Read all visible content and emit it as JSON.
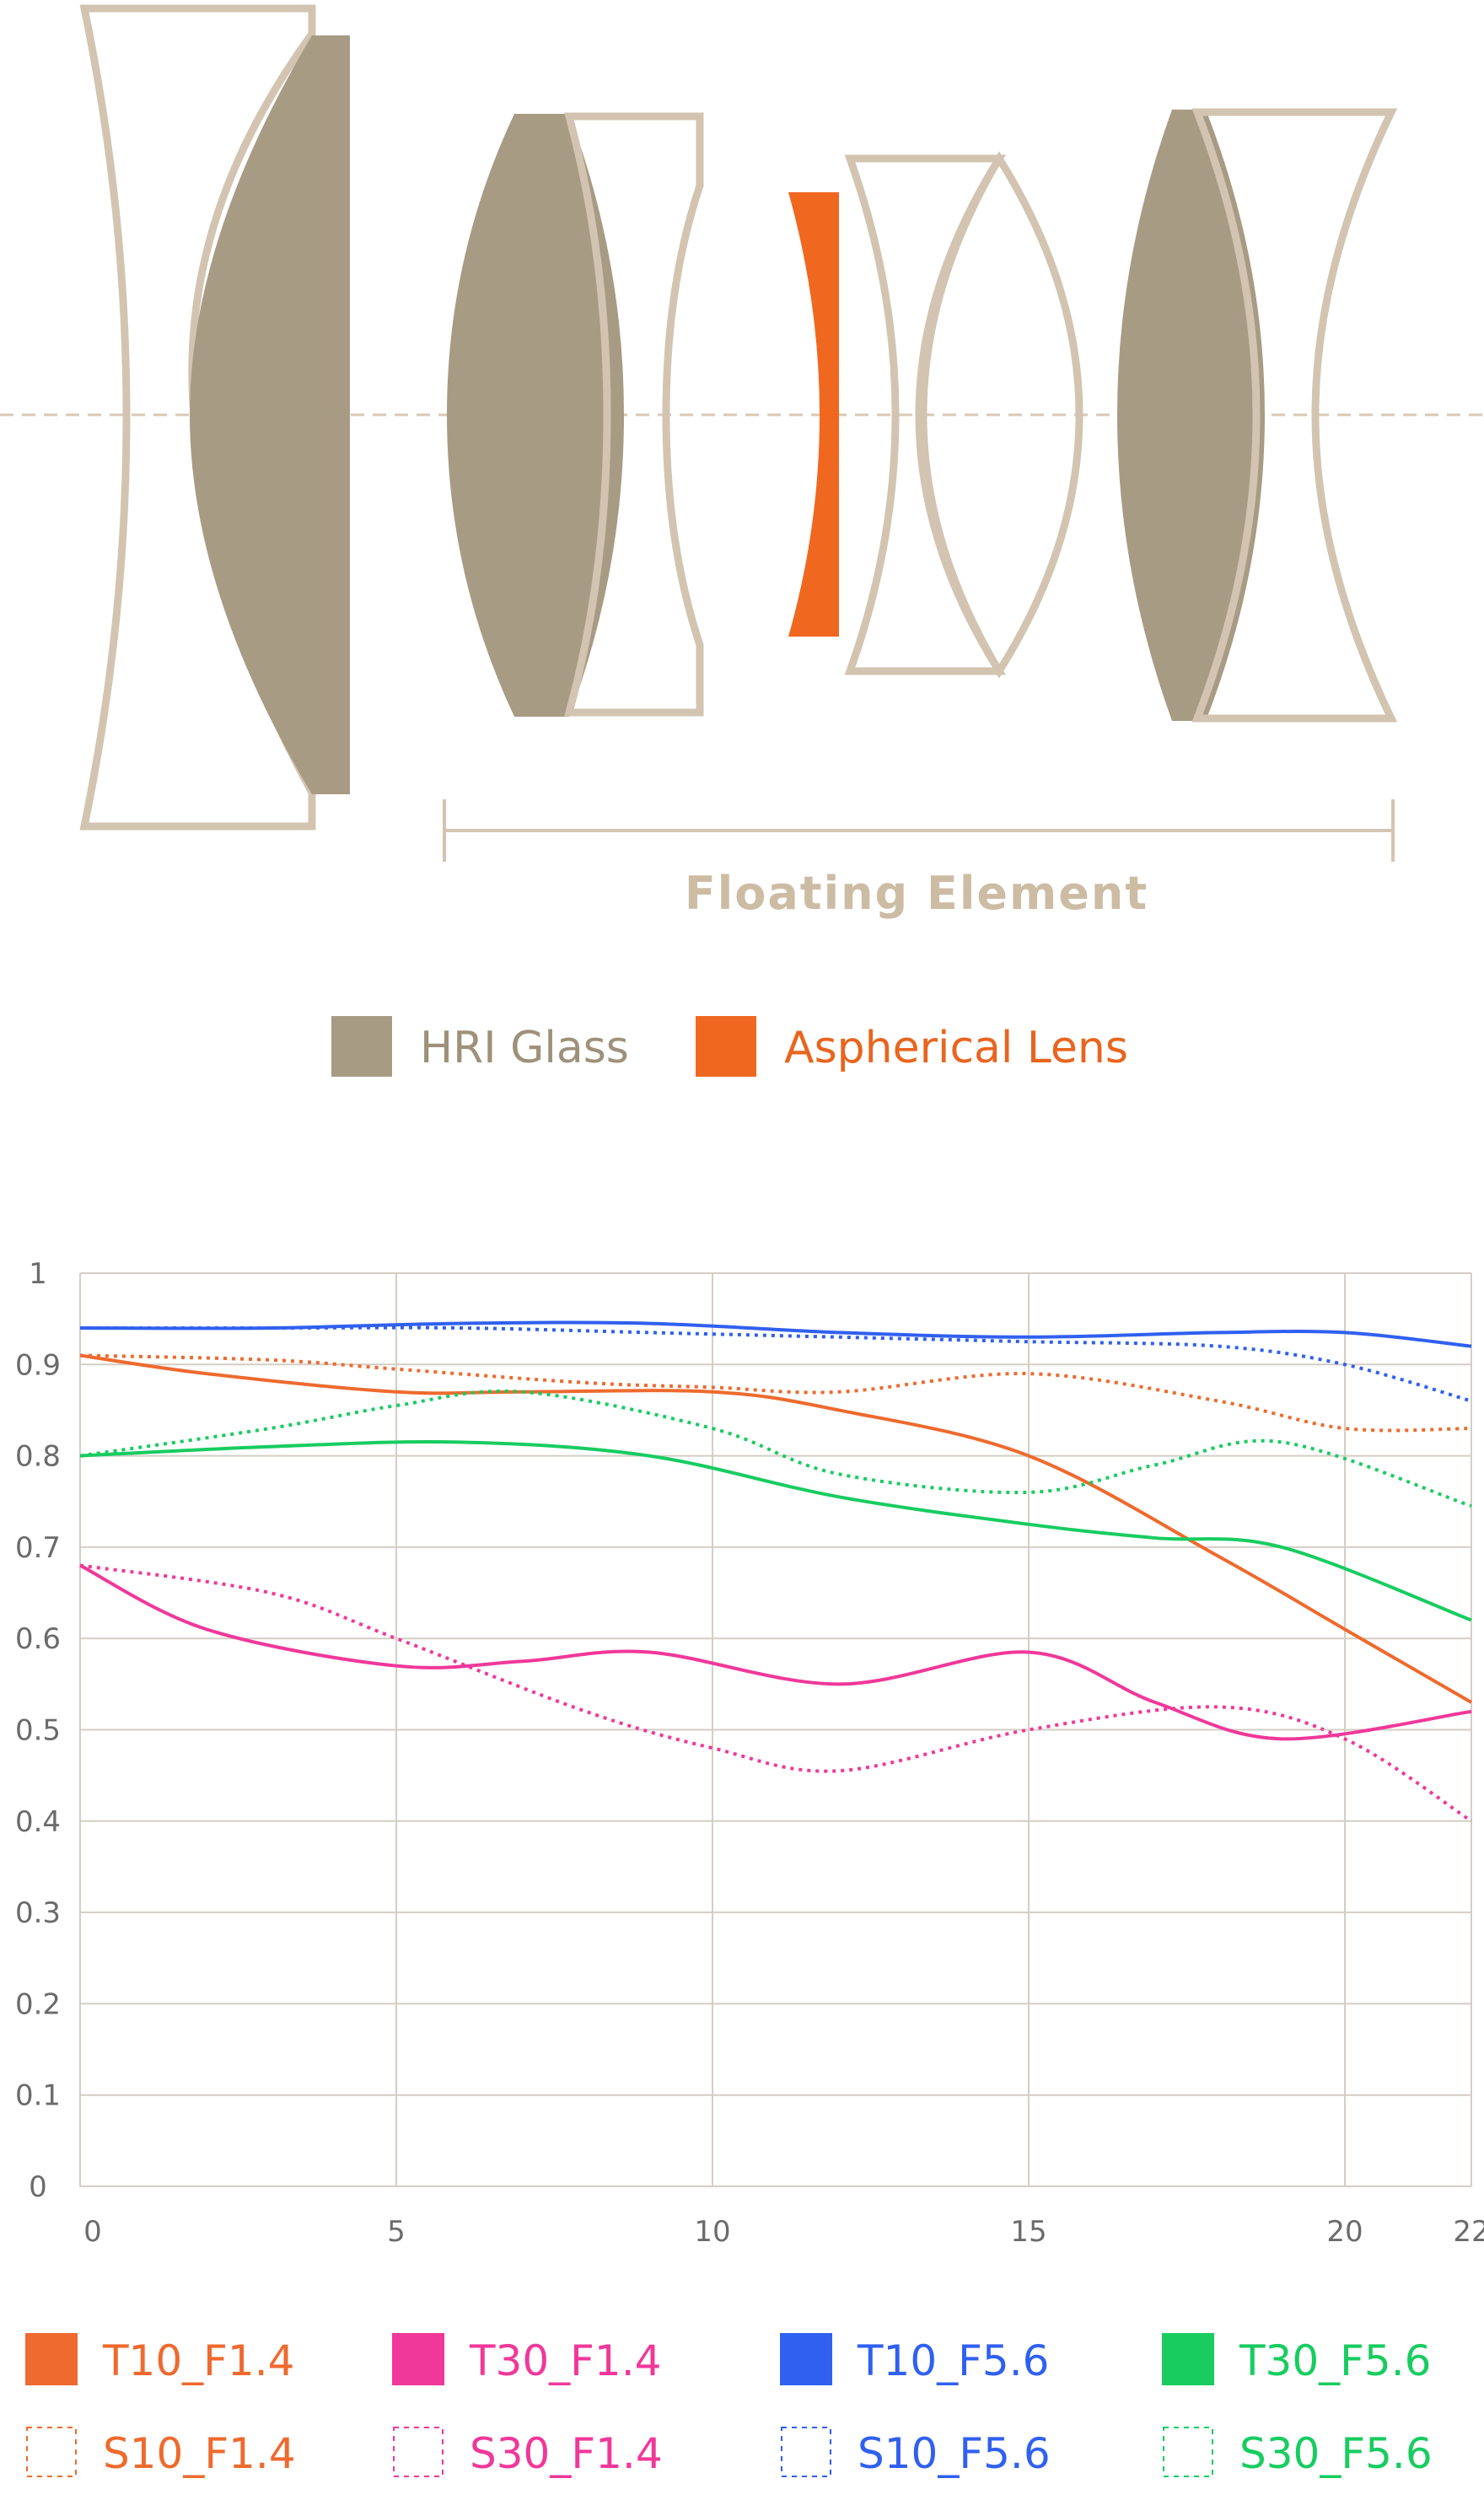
{
  "diagram": {
    "floating_label": "Floating Element",
    "legend": [
      {
        "label": "HRI Glass",
        "color": "#a89b84",
        "text_color": "#9e917a"
      },
      {
        "label": "Aspherical Lens",
        "color": "#f06820",
        "text_color": "#e8651f"
      }
    ],
    "colors": {
      "outline": "#d3c4b1",
      "hri": "#a89b84",
      "asph": "#f06820",
      "axis": "#d8c8b4",
      "label": "#cdbca4"
    }
  },
  "chart_data": {
    "type": "line",
    "title": "",
    "xlabel": "",
    "ylabel": "",
    "xlim": [
      0,
      22
    ],
    "ylim": [
      0,
      1
    ],
    "x_ticks": [
      "0",
      "5",
      "10",
      "15",
      "20",
      "22"
    ],
    "x_tick_values": [
      0,
      5,
      10,
      15,
      20,
      22
    ],
    "y_ticks": [
      "0",
      "0.1",
      "0.2",
      "0.3",
      "0.4",
      "0.5",
      "0.6",
      "0.7",
      "0.8",
      "0.9",
      "1"
    ],
    "y_tick_values": [
      0,
      0.1,
      0.2,
      0.3,
      0.4,
      0.5,
      0.6,
      0.7,
      0.8,
      0.9,
      1
    ],
    "grid": true,
    "series": [
      {
        "name": "T10_F1.4",
        "color": "#ee6a2e",
        "dashed": false,
        "x": [
          0,
          2,
          5,
          7,
          10,
          12,
          15,
          18,
          20,
          22
        ],
        "y": [
          0.91,
          0.89,
          0.87,
          0.87,
          0.87,
          0.85,
          0.8,
          0.69,
          0.61,
          0.53
        ]
      },
      {
        "name": "S10_F1.4",
        "color": "#ee6a2e",
        "dashed": true,
        "x": [
          0,
          3,
          5,
          8,
          10,
          12,
          15,
          18,
          20,
          22
        ],
        "y": [
          0.91,
          0.905,
          0.895,
          0.88,
          0.875,
          0.87,
          0.89,
          0.86,
          0.83,
          0.83
        ]
      },
      {
        "name": "T30_F1.4",
        "color": "#f0389a",
        "dashed": false,
        "x": [
          0,
          2,
          5,
          7,
          9,
          12,
          15,
          17,
          19,
          22
        ],
        "y": [
          0.68,
          0.61,
          0.57,
          0.575,
          0.585,
          0.55,
          0.585,
          0.53,
          0.49,
          0.52
        ]
      },
      {
        "name": "S30_F1.4",
        "color": "#f0389a",
        "dashed": true,
        "x": [
          0,
          3,
          5,
          8,
          10,
          12,
          15,
          18,
          20,
          22
        ],
        "y": [
          0.68,
          0.65,
          0.6,
          0.52,
          0.48,
          0.455,
          0.5,
          0.525,
          0.49,
          0.4
        ]
      },
      {
        "name": "T10_F5.6",
        "color": "#3060f0",
        "dashed": false,
        "x": [
          0,
          3,
          6,
          9,
          12,
          15,
          18,
          20,
          22
        ],
        "y": [
          0.94,
          0.94,
          0.945,
          0.945,
          0.935,
          0.93,
          0.935,
          0.935,
          0.92
        ]
      },
      {
        "name": "S10_F5.6",
        "color": "#3060f0",
        "dashed": true,
        "x": [
          0,
          3,
          6,
          9,
          12,
          15,
          18,
          20,
          22
        ],
        "y": [
          0.94,
          0.94,
          0.94,
          0.935,
          0.93,
          0.925,
          0.92,
          0.9,
          0.86
        ]
      },
      {
        "name": "T30_F5.6",
        "color": "#18cc60",
        "dashed": false,
        "x": [
          0,
          3,
          6,
          9,
          12,
          15,
          17,
          19,
          22
        ],
        "y": [
          0.8,
          0.81,
          0.815,
          0.8,
          0.755,
          0.725,
          0.71,
          0.7,
          0.62
        ]
      },
      {
        "name": "S30_F5.6",
        "color": "#18cc60",
        "dashed": true,
        "x": [
          0,
          3,
          5,
          7,
          10,
          12,
          15,
          17,
          19,
          22
        ],
        "y": [
          0.8,
          0.83,
          0.855,
          0.87,
          0.83,
          0.78,
          0.76,
          0.79,
          0.815,
          0.745
        ]
      }
    ]
  }
}
